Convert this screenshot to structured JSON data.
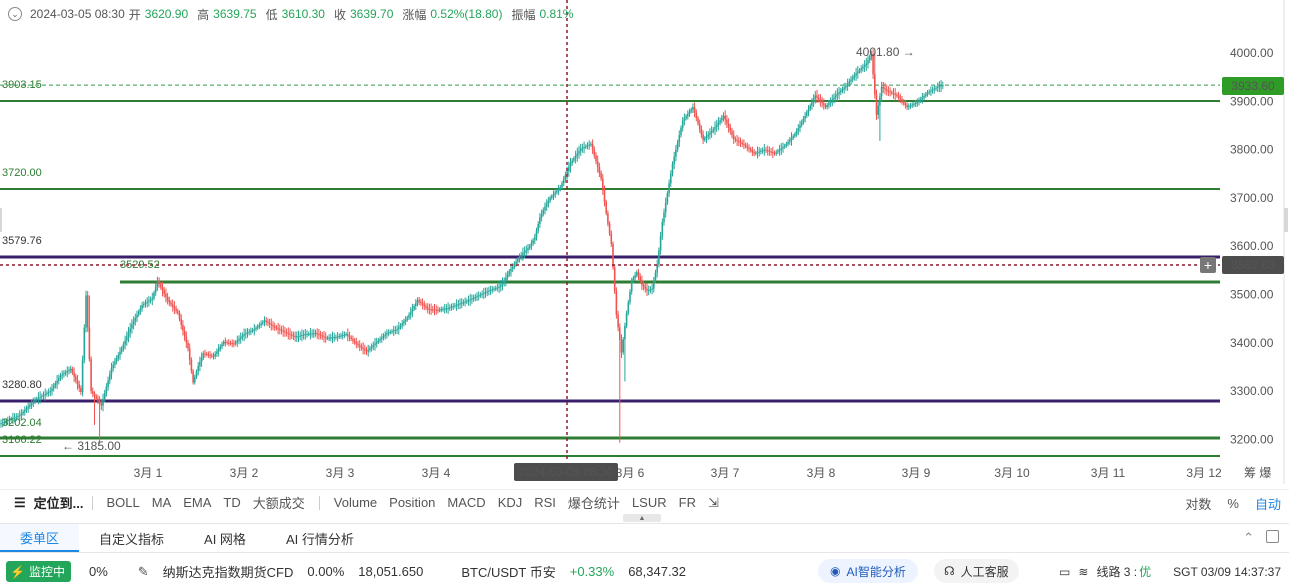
{
  "ohlc_bar": {
    "time": "2024-03-05 08:30",
    "open_label": "开",
    "open": "3620.90",
    "high_label": "高",
    "high": "3639.75",
    "low_label": "低",
    "low": "3610.30",
    "close_label": "收",
    "close": "3639.70",
    "change_label": "涨幅",
    "change": "0.52%(18.80)",
    "amp_label": "振幅",
    "amp": "0.81%"
  },
  "chart_data": {
    "type": "candlestick",
    "y_ticks": [
      "4000.00",
      "3900.00",
      "3800.00",
      "3700.00",
      "3600.00",
      "3500.00",
      "3400.00",
      "3300.00",
      "3200.00"
    ],
    "ylim": [
      3170,
      4060
    ],
    "x_ticks": [
      "3月 1",
      "3月 2",
      "3月 3",
      "3月 4",
      "3月 6",
      "3月 7",
      "3月 8",
      "3月 9",
      "3月 10",
      "3月 11",
      "3月 12"
    ],
    "crosshair_time": "2024-03-05 08:30",
    "crosshair_price": "3562.63",
    "last_price": "3933.60",
    "high_marker": "4001.80",
    "low_marker": "3185.00",
    "price_path": [
      [
        0,
        3232
      ],
      [
        4,
        3250
      ],
      [
        7,
        3282
      ],
      [
        10,
        3300
      ],
      [
        12,
        3332
      ],
      [
        14,
        3346
      ],
      [
        16,
        3298
      ],
      [
        17,
        3498
      ],
      [
        18,
        3300
      ],
      [
        20,
        3270
      ],
      [
        22,
        3348
      ],
      [
        24,
        3388
      ],
      [
        26,
        3438
      ],
      [
        28,
        3478
      ],
      [
        30,
        3492
      ],
      [
        31,
        3528
      ],
      [
        33,
        3488
      ],
      [
        35,
        3462
      ],
      [
        37,
        3388
      ],
      [
        38,
        3318
      ],
      [
        39,
        3352
      ],
      [
        40,
        3378
      ],
      [
        42,
        3372
      ],
      [
        44,
        3402
      ],
      [
        46,
        3398
      ],
      [
        48,
        3418
      ],
      [
        50,
        3428
      ],
      [
        52,
        3446
      ],
      [
        54,
        3432
      ],
      [
        56,
        3422
      ],
      [
        58,
        3412
      ],
      [
        60,
        3418
      ],
      [
        62,
        3420
      ],
      [
        64,
        3410
      ],
      [
        66,
        3412
      ],
      [
        68,
        3418
      ],
      [
        70,
        3398
      ],
      [
        72,
        3382
      ],
      [
        74,
        3402
      ],
      [
        76,
        3420
      ],
      [
        78,
        3428
      ],
      [
        80,
        3452
      ],
      [
        82,
        3488
      ],
      [
        84,
        3470
      ],
      [
        86,
        3468
      ],
      [
        88,
        3472
      ],
      [
        90,
        3480
      ],
      [
        92,
        3488
      ],
      [
        94,
        3498
      ],
      [
        96,
        3508
      ],
      [
        98,
        3516
      ],
      [
        99,
        3528
      ],
      [
        100,
        3548
      ],
      [
        102,
        3578
      ],
      [
        104,
        3600
      ],
      [
        105,
        3618
      ],
      [
        106,
        3660
      ],
      [
        107,
        3682
      ],
      [
        108,
        3700
      ],
      [
        110,
        3722
      ],
      [
        112,
        3772
      ],
      [
        114,
        3802
      ],
      [
        116,
        3812
      ],
      [
        118,
        3740
      ],
      [
        119,
        3668
      ],
      [
        120,
        3605
      ],
      [
        121,
        3458
      ],
      [
        122,
        3380
      ],
      [
        123,
        3462
      ],
      [
        124,
        3528
      ],
      [
        125,
        3546
      ],
      [
        126,
        3520
      ],
      [
        127,
        3508
      ],
      [
        128,
        3512
      ],
      [
        129,
        3562
      ],
      [
        130,
        3650
      ],
      [
        132,
        3770
      ],
      [
        134,
        3860
      ],
      [
        136,
        3888
      ],
      [
        138,
        3820
      ],
      [
        140,
        3842
      ],
      [
        142,
        3870
      ],
      [
        144,
        3822
      ],
      [
        146,
        3810
      ],
      [
        148,
        3792
      ],
      [
        150,
        3800
      ],
      [
        152,
        3792
      ],
      [
        154,
        3808
      ],
      [
        156,
        3832
      ],
      [
        158,
        3870
      ],
      [
        160,
        3912
      ],
      [
        162,
        3888
      ],
      [
        164,
        3912
      ],
      [
        166,
        3932
      ],
      [
        168,
        3958
      ],
      [
        170,
        3978
      ],
      [
        171,
        3998
      ],
      [
        172,
        3872
      ],
      [
        173,
        3930
      ],
      [
        174,
        3922
      ],
      [
        176,
        3912
      ],
      [
        178,
        3888
      ],
      [
        180,
        3898
      ],
      [
        182,
        3918
      ],
      [
        184,
        3930
      ],
      [
        185,
        3933.6
      ]
    ]
  },
  "levels": [
    {
      "label": "3903.15",
      "color": "#2e7d32"
    },
    {
      "label": "3720.00",
      "color": "#2e7d32"
    },
    {
      "label": "3579.76",
      "color": "#3a1f6b"
    },
    {
      "label": "3529.52",
      "color": "#2e7d32"
    },
    {
      "label": "3280.80",
      "color": "#3a1f6b"
    },
    {
      "label": "3202.04",
      "color": "#2e7d32"
    },
    {
      "label": "3166.22",
      "color": "#2e7d32"
    }
  ],
  "colors": {
    "up": "#26a69a",
    "down": "#ef5350",
    "green_line": "#2e7d32",
    "purple_line": "#3a1f6b",
    "crosshair": "#8b1a2b",
    "accent": "#1e88e5"
  },
  "indicator_bar": {
    "locate": "定位到...",
    "items": [
      "BOLL",
      "MA",
      "EMA",
      "TD",
      "大额成交",
      "Volume",
      "Position",
      "MACD",
      "KDJ",
      "RSI",
      "爆仓统计",
      "LSUR",
      "FR"
    ],
    "right": [
      "对数",
      "%",
      "自动"
    ]
  },
  "tabs": [
    "委单区",
    "自定义指标",
    "AI 网格",
    "AI 行情分析"
  ],
  "status_bar": {
    "monitor": "监控中",
    "pct": "0%",
    "nasdaq_name": "纳斯达克指数期货CFD",
    "nasdaq_change": "0.00%",
    "nasdaq_price": "18,051.650",
    "btc_name": "BTC/USDT 币安",
    "btc_change": "+0.33%",
    "btc_price": "68,347.32",
    "ai_analysis": "AI智能分析",
    "customer_service": "人工客服",
    "line_label": "线路 3 :",
    "line_quality": "优",
    "clock": "SGT  03/09 14:37:37"
  }
}
